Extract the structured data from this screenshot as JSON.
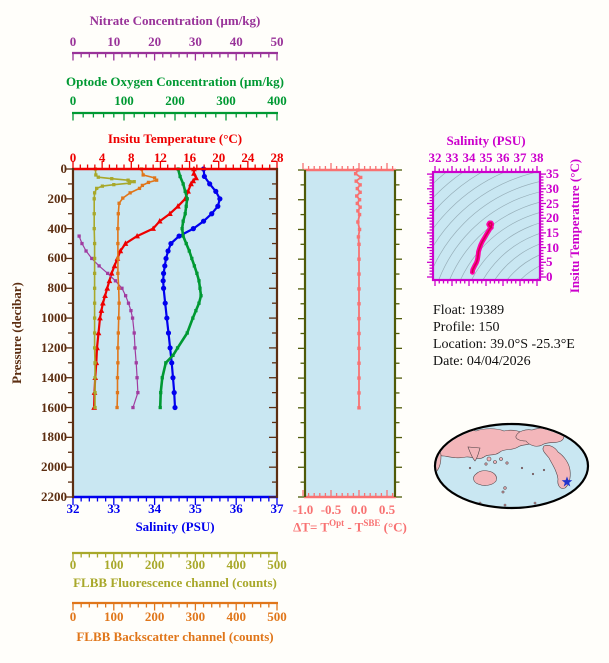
{
  "figure": {
    "plot_background": "#c9e7f2",
    "page_background": "#fffefa",
    "land_color": "#f3b6ba",
    "star_color": "#2233cc"
  },
  "axes": {
    "nitrate": {
      "title": "Nitrate Concentration (µm/kg)",
      "tick_labels": [
        "0",
        "10",
        "20",
        "30",
        "40",
        "50"
      ],
      "range": [
        0,
        50
      ],
      "color": "#993399"
    },
    "oxygen": {
      "title": "Optode Oxygen Concentration (µm/kg)",
      "tick_labels": [
        "0",
        "100",
        "200",
        "300",
        "400"
      ],
      "range": [
        0,
        400
      ],
      "color": "#009933"
    },
    "temperature": {
      "title": "Insitu Temperature (°C)",
      "tick_labels": [
        "0",
        "4",
        "8",
        "12",
        "16",
        "20",
        "24",
        "28"
      ],
      "range": [
        0,
        28
      ],
      "color": "#ee0000"
    },
    "salinity": {
      "title": "Salinity (PSU)",
      "tick_labels": [
        "32",
        "33",
        "34",
        "35",
        "36",
        "37"
      ],
      "range": [
        32,
        37
      ],
      "color": "#0000ee"
    },
    "fluorescence": {
      "title": "FLBB Fluorescence channel (counts)",
      "tick_labels": [
        "0",
        "100",
        "200",
        "300",
        "400",
        "500"
      ],
      "range": [
        0,
        500
      ],
      "color": "#a8a82a"
    },
    "backscatter": {
      "title": "FLBB Backscatter channel (counts)",
      "tick_labels": [
        "0",
        "100",
        "200",
        "300",
        "400",
        "500"
      ],
      "range": [
        0,
        500
      ],
      "color": "#e0761a"
    },
    "pressure": {
      "title": "Pressure (decibar)",
      "tick_labels": [
        "0",
        "200",
        "400",
        "600",
        "800",
        "1000",
        "1200",
        "1400",
        "1600",
        "1800",
        "2000",
        "2200"
      ],
      "range": [
        0,
        2200
      ],
      "color": "#5c2e11"
    },
    "dt": {
      "tick_labels": [
        "-1.0",
        "-0.5",
        "0.0",
        "0.5"
      ],
      "range": [
        -1.0,
        0.5
      ],
      "color": "#f87272"
    },
    "ts_sal": {
      "title": "Salinity (PSU)",
      "tick_labels": [
        "32",
        "33",
        "34",
        "35",
        "36",
        "37",
        "38"
      ],
      "range": [
        32,
        38
      ],
      "color": "#cc00cc"
    },
    "ts_temp": {
      "title": "Insitu Temperature (°C)",
      "tick_labels": [
        "0",
        "5",
        "10",
        "15",
        "20",
        "25",
        "30",
        "35"
      ],
      "range": [
        0,
        35
      ],
      "color": "#cc00cc"
    }
  },
  "dt_title": {
    "p1": "ΔT= T",
    "sup1": "Opt",
    "p2": " - T",
    "sup2": "SBE",
    "p3": " (°C)"
  },
  "meta": {
    "lines": [
      "Float:  19389",
      "Profile:  150",
      "Location:  39.0°S  -25.3°E",
      "Date:  04/04/2026"
    ]
  },
  "chart_data": [
    {
      "id": "profile-plot",
      "type": "line",
      "y_axis": {
        "label": "Pressure (decibar)",
        "range": [
          0,
          2200
        ],
        "ticks": [
          0,
          200,
          400,
          600,
          800,
          1000,
          1200,
          1400,
          1600,
          1800,
          2000,
          2200
        ]
      },
      "series": [
        {
          "name": "Insitu Temperature (°C)",
          "axis": "temperature",
          "color": "#ee0000",
          "marker": "triangle",
          "points": [
            [
              0,
              16.6
            ],
            [
              30,
              16.6
            ],
            [
              60,
              16.9
            ],
            [
              80,
              16.5
            ],
            [
              100,
              16.2
            ],
            [
              150,
              15.8
            ],
            [
              200,
              15.4
            ],
            [
              250,
              14.4
            ],
            [
              300,
              13.3
            ],
            [
              350,
              11.9
            ],
            [
              400,
              11.0
            ],
            [
              450,
              8.8
            ],
            [
              500,
              7.2
            ],
            [
              550,
              6.5
            ],
            [
              600,
              6.1
            ],
            [
              650,
              5.7
            ],
            [
              700,
              5.3
            ],
            [
              750,
              5.0
            ],
            [
              800,
              4.7
            ],
            [
              850,
              4.4
            ],
            [
              900,
              4.1
            ],
            [
              950,
              3.9
            ],
            [
              1000,
              3.7
            ],
            [
              1100,
              3.5
            ],
            [
              1200,
              3.3
            ],
            [
              1300,
              3.2
            ],
            [
              1400,
              3.05
            ],
            [
              1500,
              2.95
            ],
            [
              1600,
              2.9
            ]
          ]
        },
        {
          "name": "Salinity (PSU)",
          "axis": "salinity",
          "color": "#0000ee",
          "marker": "circle",
          "points": [
            [
              0,
              35.2
            ],
            [
              50,
              35.22
            ],
            [
              100,
              35.35
            ],
            [
              150,
              35.5
            ],
            [
              200,
              35.6
            ],
            [
              250,
              35.55
            ],
            [
              300,
              35.4
            ],
            [
              350,
              35.2
            ],
            [
              400,
              34.95
            ],
            [
              450,
              34.6
            ],
            [
              500,
              34.4
            ],
            [
              550,
              34.33
            ],
            [
              600,
              34.28
            ],
            [
              650,
              34.25
            ],
            [
              700,
              34.22
            ],
            [
              750,
              34.21
            ],
            [
              800,
              34.22
            ],
            [
              900,
              34.26
            ],
            [
              1000,
              34.3
            ],
            [
              1100,
              34.34
            ],
            [
              1200,
              34.38
            ],
            [
              1300,
              34.42
            ],
            [
              1400,
              34.45
            ],
            [
              1500,
              34.48
            ],
            [
              1600,
              34.5
            ]
          ]
        },
        {
          "name": "Optode Oxygen Concentration (µm/kg)",
          "axis": "oxygen",
          "color": "#009933",
          "marker": "square",
          "points": [
            [
              0,
              206
            ],
            [
              50,
              210
            ],
            [
              100,
              216
            ],
            [
              150,
              220
            ],
            [
              200,
              224
            ],
            [
              250,
              222
            ],
            [
              300,
              220
            ],
            [
              350,
              216
            ],
            [
              400,
              214
            ],
            [
              450,
              216
            ],
            [
              500,
              222
            ],
            [
              550,
              228
            ],
            [
              600,
              233
            ],
            [
              650,
              238
            ],
            [
              700,
              243
            ],
            [
              750,
              247
            ],
            [
              800,
              249
            ],
            [
              850,
              251
            ],
            [
              900,
              247
            ],
            [
              950,
              241
            ],
            [
              1000,
              235
            ],
            [
              1100,
              224
            ],
            [
              1200,
              205
            ],
            [
              1250,
              196
            ],
            [
              1300,
              182
            ],
            [
              1400,
              175
            ],
            [
              1500,
              172
            ],
            [
              1600,
              171
            ]
          ]
        },
        {
          "name": "Nitrate Concentration (µm/kg)",
          "axis": "nitrate",
          "color": "#a03ca0",
          "marker": "square",
          "points": [
            [
              450,
              1.5
            ],
            [
              500,
              2.2
            ],
            [
              550,
              3.2
            ],
            [
              600,
              4.6
            ],
            [
              650,
              6.4
            ],
            [
              700,
              8.5
            ],
            [
              750,
              10.4
            ],
            [
              800,
              12.0
            ],
            [
              850,
              12.9
            ],
            [
              900,
              13.6
            ],
            [
              950,
              14.2
            ],
            [
              1000,
              14.6
            ],
            [
              1100,
              15.0
            ],
            [
              1200,
              15.2
            ],
            [
              1300,
              15.5
            ],
            [
              1400,
              15.7
            ],
            [
              1500,
              15.9
            ],
            [
              1600,
              14.7
            ]
          ]
        },
        {
          "name": "FLBB Fluorescence channel (counts)",
          "axis": "fluorescence",
          "color": "#a8a82a",
          "marker": "square",
          "points": [
            [
              0,
              55
            ],
            [
              40,
              56
            ],
            [
              55,
              62
            ],
            [
              65,
              95
            ],
            [
              75,
              135
            ],
            [
              85,
              150
            ],
            [
              95,
              138
            ],
            [
              105,
              100
            ],
            [
              115,
              72
            ],
            [
              130,
              58
            ],
            [
              160,
              53
            ],
            [
              200,
              52
            ],
            [
              300,
              52
            ],
            [
              400,
              52
            ],
            [
              500,
              53
            ],
            [
              600,
              53
            ],
            [
              700,
              53
            ],
            [
              800,
              53
            ],
            [
              900,
              53
            ],
            [
              1000,
              53
            ],
            [
              1100,
              53
            ],
            [
              1200,
              53
            ],
            [
              1300,
              54
            ],
            [
              1400,
              54
            ],
            [
              1500,
              54
            ],
            [
              1600,
              54
            ]
          ]
        },
        {
          "name": "FLBB Backscatter channel (counts)",
          "axis": "backscatter",
          "color": "#e0761a",
          "marker": "square",
          "points": [
            [
              0,
              168
            ],
            [
              40,
              172
            ],
            [
              60,
              200
            ],
            [
              75,
              205
            ],
            [
              90,
              185
            ],
            [
              110,
              170
            ],
            [
              130,
              163
            ],
            [
              160,
              140
            ],
            [
              195,
              122
            ],
            [
              230,
              113
            ],
            [
              300,
              111
            ],
            [
              400,
              110
            ],
            [
              500,
              110
            ],
            [
              600,
              110
            ],
            [
              700,
              110
            ],
            [
              800,
              112
            ],
            [
              900,
              113
            ],
            [
              1000,
              112
            ],
            [
              1100,
              111
            ],
            [
              1200,
              110
            ],
            [
              1300,
              110
            ],
            [
              1400,
              109
            ],
            [
              1500,
              109
            ],
            [
              1600,
              108
            ]
          ]
        }
      ]
    },
    {
      "id": "delta-t-plot",
      "type": "line",
      "x_axis": {
        "label": "ΔT= T^Opt - T^SBE (°C)",
        "range": [
          -1.0,
          0.5
        ],
        "ticks": [
          -1.0,
          -0.5,
          0.0,
          0.5
        ]
      },
      "y_axis": {
        "label": "Pressure (decibar)",
        "range": [
          0,
          2200
        ]
      },
      "series": [
        {
          "name": "ΔT",
          "color": "#f87272",
          "marker": "square",
          "points": [
            [
              0,
              -0.02
            ],
            [
              25,
              -0.06
            ],
            [
              50,
              0.03
            ],
            [
              75,
              -0.05
            ],
            [
              100,
              0.02
            ],
            [
              125,
              -0.03
            ],
            [
              150,
              0.02
            ],
            [
              175,
              -0.04
            ],
            [
              200,
              0.01
            ],
            [
              225,
              -0.03
            ],
            [
              250,
              0.02
            ],
            [
              275,
              -0.02
            ],
            [
              300,
              0.01
            ],
            [
              350,
              -0.02
            ],
            [
              400,
              0.01
            ],
            [
              450,
              -0.01
            ],
            [
              500,
              0.0
            ],
            [
              600,
              0.0
            ],
            [
              700,
              0.0
            ],
            [
              800,
              0.0
            ],
            [
              900,
              0.0
            ],
            [
              1000,
              0.0
            ],
            [
              1100,
              0.0
            ],
            [
              1200,
              0.0
            ],
            [
              1300,
              0.0
            ],
            [
              1400,
              0.0
            ],
            [
              1500,
              0.0
            ],
            [
              1600,
              0.0
            ]
          ]
        }
      ]
    },
    {
      "id": "ts-diagram",
      "type": "line",
      "x_axis": {
        "label": "Salinity (PSU)",
        "range": [
          32,
          38
        ],
        "ticks": [
          32,
          33,
          34,
          35,
          36,
          37,
          38
        ]
      },
      "y_axis": {
        "label": "Insitu Temperature (°C)",
        "range": [
          0,
          35
        ],
        "ticks": [
          0,
          5,
          10,
          15,
          20,
          25,
          30,
          35
        ]
      },
      "density_contours": true,
      "series": [
        {
          "name": "T-S profile",
          "color": "#ff00a6",
          "points": [
            [
              34.2,
              1.6
            ],
            [
              34.22,
              2.4
            ],
            [
              34.28,
              3.2
            ],
            [
              34.35,
              4.0
            ],
            [
              34.43,
              4.8
            ],
            [
              34.49,
              5.7
            ],
            [
              34.52,
              6.6
            ],
            [
              34.54,
              7.6
            ],
            [
              34.56,
              8.6
            ],
            [
              34.61,
              9.6
            ],
            [
              34.69,
              10.9
            ],
            [
              34.79,
              12.1
            ],
            [
              34.91,
              13.3
            ],
            [
              35.03,
              14.5
            ],
            [
              35.16,
              15.7
            ],
            [
              35.28,
              16.9
            ],
            [
              35.34,
              17.9
            ],
            [
              35.3,
              18.4
            ],
            [
              35.21,
              18.4
            ],
            [
              35.16,
              17.9
            ],
            [
              35.23,
              17.2
            ],
            [
              35.31,
              16.8
            ]
          ]
        }
      ]
    },
    {
      "id": "world-map",
      "type": "map",
      "projection": "pacific-centered-ellipse",
      "float_marker": "blue-star"
    }
  ]
}
